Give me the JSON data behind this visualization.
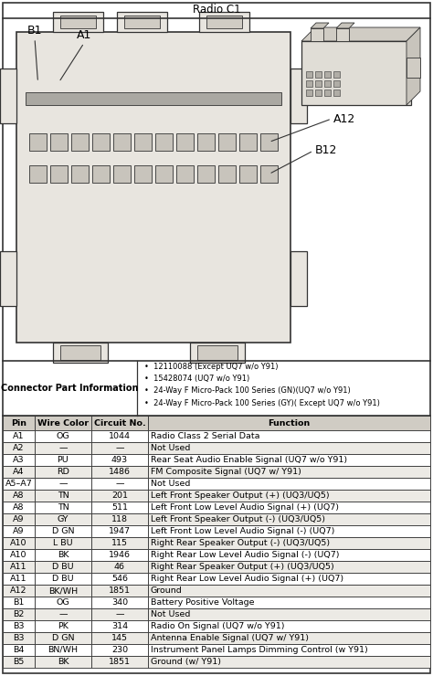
{
  "title": "Radio C1",
  "connector_label": "Connector Part Information",
  "connector_bullets": [
    "12110088 (Except UQ7 w/o Y91)",
    "15428074 (UQ7 w/o Y91)",
    "24-Way F Micro-Pack 100 Series (GN)(UQ7 w/o Y91)",
    "24-Way F Micro-Pack 100 Series (GY)( Except UQ7 w/o Y91)"
  ],
  "table_headers": [
    "Pin",
    "Wire Color",
    "Circuit No.",
    "Function"
  ],
  "table_rows": [
    [
      "A1",
      "OG",
      "1044",
      "Radio Class 2 Serial Data"
    ],
    [
      "A2",
      "—",
      "—",
      "Not Used"
    ],
    [
      "A3",
      "PU",
      "493",
      "Rear Seat Audio Enable Signal (UQ7 w/o Y91)"
    ],
    [
      "A4",
      "RD",
      "1486",
      "FM Composite Signal (UQ7 w/ Y91)"
    ],
    [
      "A5–A7",
      "—",
      "—",
      "Not Used"
    ],
    [
      "A8",
      "TN",
      "201",
      "Left Front Speaker Output (+) (UQ3/UQ5)"
    ],
    [
      "A8",
      "TN",
      "511",
      "Left Front Low Level Audio Signal (+) (UQ7)"
    ],
    [
      "A9",
      "GY",
      "118",
      "Left Front Speaker Output (-) (UQ3/UQ5)"
    ],
    [
      "A9",
      "D GN",
      "1947",
      "Left Front Low Level Audio Signal (-) (UQ7)"
    ],
    [
      "A10",
      "L BU",
      "115",
      "Right Rear Speaker Output (-) (UQ3/UQ5)"
    ],
    [
      "A10",
      "BK",
      "1946",
      "Right Rear Low Level Audio Signal (-) (UQ7)"
    ],
    [
      "A11",
      "D BU",
      "46",
      "Right Rear Speaker Output (+) (UQ3/UQ5)"
    ],
    [
      "A11",
      "D BU",
      "546",
      "Right Rear Low Level Audio Signal (+) (UQ7)"
    ],
    [
      "A12",
      "BK/WH",
      "1851",
      "Ground"
    ],
    [
      "B1",
      "OG",
      "340",
      "Battery Positive Voltage"
    ],
    [
      "B2",
      "—",
      "—",
      "Not Used"
    ],
    [
      "B3",
      "PK",
      "314",
      "Radio On Signal (UQ7 w/o Y91)"
    ],
    [
      "B3",
      "D GN",
      "145",
      "Antenna Enable Signal (UQ7 w/ Y91)"
    ],
    [
      "B4",
      "BN/WH",
      "230",
      "Instrument Panel Lamps Dimming Control (w Y91)"
    ],
    [
      "B5",
      "BK",
      "1851",
      "Ground (w/ Y91)"
    ]
  ],
  "bg_color": "#f5f3ef",
  "white": "#ffffff",
  "border_color": "#333333",
  "connector_fill": "#e8e5df",
  "slot_fill": "#c8c4bc",
  "header_bg": "#d0ccc4",
  "row_bg_alt": "#eceae5",
  "font_size_title": 8.5,
  "font_size_table": 6.8,
  "font_size_connector": 7.0,
  "font_size_label": 9.0
}
